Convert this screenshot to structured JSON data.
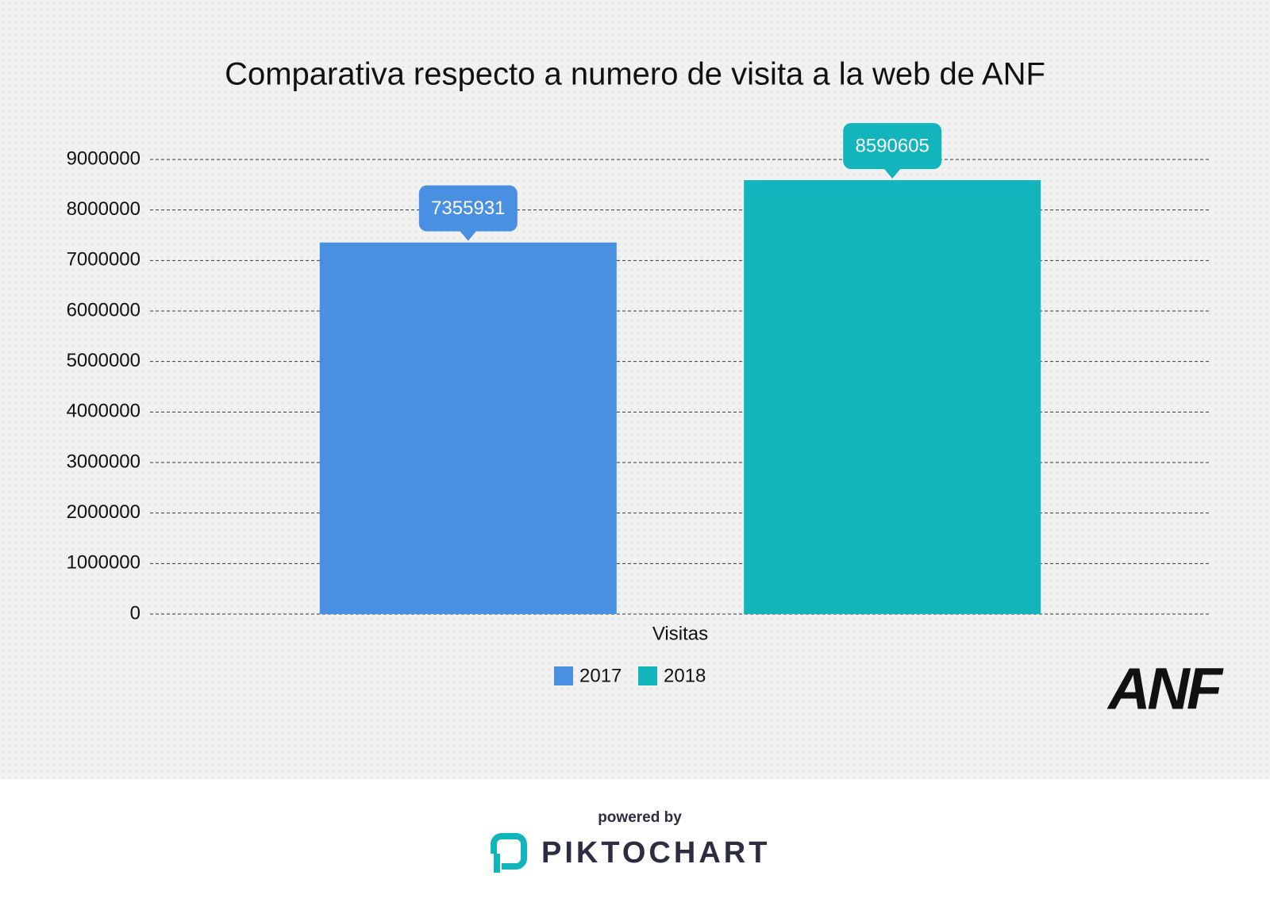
{
  "chart_data": {
    "type": "bar",
    "title": "Comparativa respecto a numero de visita a la web de ANF",
    "categories": [
      "Visitas"
    ],
    "series": [
      {
        "name": "2017",
        "color": "#4a90e2",
        "values": [
          7355931
        ]
      },
      {
        "name": "2018",
        "color": "#12b5bc",
        "values": [
          8590605
        ]
      }
    ],
    "ylim": [
      0,
      9000000
    ],
    "yticks": [
      0,
      1000000,
      2000000,
      3000000,
      4000000,
      5000000,
      6000000,
      7000000,
      8000000,
      9000000
    ],
    "grid": true,
    "legend": "bottom"
  },
  "logo": "ANF",
  "footer": {
    "powered_by": "powered by",
    "brand": "PIKTOCHART"
  }
}
